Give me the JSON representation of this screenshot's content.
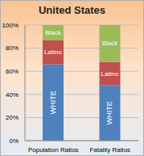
{
  "chart_data": {
    "type": "bar",
    "title": "United States",
    "categories": [
      "Population Ratios",
      "Fatality Ratios"
    ],
    "series": [
      {
        "name": "WHITE",
        "color": "#4f81bd",
        "values": [
          66,
          48
        ]
      },
      {
        "name": "Latino",
        "color": "#c0504d",
        "values": [
          21,
          20
        ]
      },
      {
        "name": "Black",
        "color": "#9bbb59",
        "values": [
          13,
          32
        ]
      }
    ],
    "stacked": true,
    "ylim": [
      0,
      100
    ],
    "yticks": [
      {
        "value": 0,
        "label": "0%"
      },
      {
        "value": 20,
        "label": "20%"
      },
      {
        "value": 40,
        "label": "40%"
      },
      {
        "value": 60,
        "label": "60%"
      },
      {
        "value": 80,
        "label": "80%"
      },
      {
        "value": 100,
        "label": "100%"
      }
    ],
    "grid": true
  }
}
